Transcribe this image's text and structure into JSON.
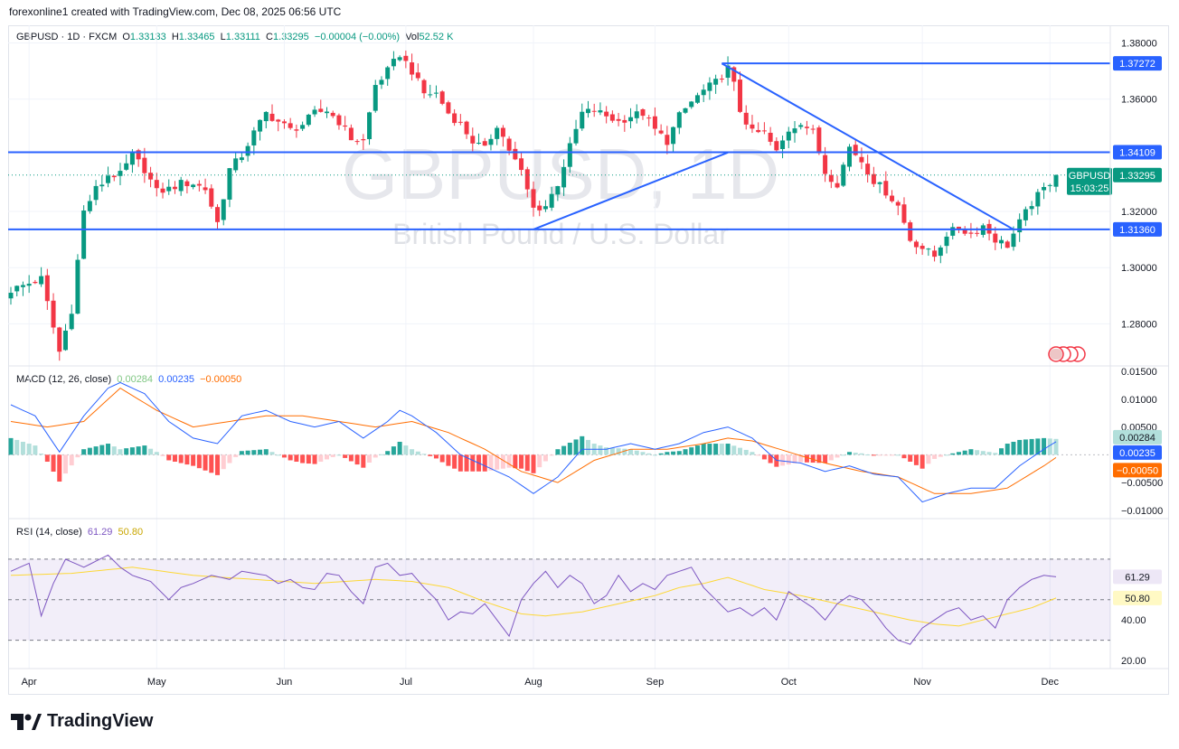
{
  "caption": "forexonline1 created with TradingView.com, Dec 08, 2025 06:56 UTC",
  "header": {
    "symbol": "GBPUSD · 1D · FXCM",
    "o_label": "O",
    "o": "1.33133",
    "h_label": "H",
    "h": "1.33465",
    "l_label": "L",
    "l": "1.33111",
    "c_label": "C",
    "c": "1.33295",
    "chg": "−0.00004 (−0.00%)",
    "vol_label": "Vol",
    "vol": "52.52 K"
  },
  "watermark": {
    "symbol": "GBPUSD, 1D",
    "description": "British Pound / U.S. Dollar"
  },
  "colors": {
    "up": "#089981",
    "down": "#f23645",
    "line": "#2962ff",
    "rsi": "#7e57c2",
    "rsi_ma": "#fdd835",
    "macd": "#2962ff",
    "signal": "#ff6d00"
  },
  "chart_data": [
    {
      "type": "candlestick",
      "title": "GBPUSD · 1D · FXCM",
      "ylim": [
        1.265,
        1.385
      ],
      "y_ticks": [
        "1.38000",
        "1.36000",
        "1.32000",
        "1.30000",
        "1.28000"
      ],
      "y_tick_values": [
        1.38,
        1.36,
        1.32,
        1.3,
        1.28
      ],
      "x_ticks": [
        "Apr",
        "May",
        "Jun",
        "Jul",
        "Aug",
        "Sep",
        "Oct",
        "Nov",
        "Dec"
      ],
      "x_tick_days": [
        3,
        24,
        45,
        65,
        86,
        106,
        128,
        150,
        171
      ],
      "close_series_days": [
        0,
        5,
        8,
        10,
        12,
        14,
        15,
        16,
        18,
        20,
        22,
        24,
        26,
        28,
        30,
        32,
        34,
        36,
        38,
        40,
        42,
        44,
        46,
        48,
        50,
        52,
        54,
        56,
        58,
        60,
        62,
        63,
        64,
        66,
        68,
        70,
        72,
        74,
        76,
        78,
        80,
        82,
        84,
        86,
        88,
        90,
        92,
        94,
        96,
        98,
        100,
        102,
        104,
        106,
        108,
        110,
        112,
        114,
        116,
        118,
        119,
        120,
        122,
        124,
        126,
        128,
        130,
        132,
        134,
        136,
        138,
        140,
        142,
        144,
        146,
        148,
        150,
        152,
        154,
        156,
        158,
        160,
        162,
        164,
        166,
        168,
        170,
        172
      ],
      "close_series": [
        1.292,
        1.296,
        1.27,
        1.285,
        1.32,
        1.328,
        1.33,
        1.333,
        1.333,
        1.34,
        1.335,
        1.327,
        1.328,
        1.33,
        1.33,
        1.328,
        1.316,
        1.335,
        1.34,
        1.348,
        1.355,
        1.352,
        1.349,
        1.351,
        1.355,
        1.356,
        1.352,
        1.346,
        1.345,
        1.365,
        1.37,
        1.373,
        1.376,
        1.37,
        1.362,
        1.362,
        1.355,
        1.351,
        1.345,
        1.342,
        1.351,
        1.342,
        1.334,
        1.321,
        1.322,
        1.33,
        1.343,
        1.355,
        1.356,
        1.354,
        1.352,
        1.354,
        1.355,
        1.349,
        1.345,
        1.354,
        1.359,
        1.363,
        1.366,
        1.371,
        1.365,
        1.356,
        1.348,
        1.348,
        1.341,
        1.349,
        1.352,
        1.348,
        1.334,
        1.33,
        1.343,
        1.338,
        1.331,
        1.327,
        1.322,
        1.31,
        1.307,
        1.304,
        1.312,
        1.314,
        1.312,
        1.315,
        1.31,
        1.308,
        1.316,
        1.323,
        1.328,
        1.333
      ],
      "horizontal_levels": [
        "1.37272",
        "1.34109",
        "1.31360"
      ],
      "horizontal_level_values": [
        1.37272,
        1.34109,
        1.3136
      ],
      "trendlines": [
        {
          "from": [
            86,
            1.3136
          ],
          "to": [
            118,
            1.341
          ]
        },
        {
          "from": [
            117,
            1.3727
          ],
          "to": [
            165,
            1.3136
          ]
        }
      ],
      "last_price": "1.33295",
      "last_price_value": 1.33295,
      "symbol_tag": "GBPUSD",
      "countdown": "15:03:25"
    },
    {
      "type": "line",
      "title": "MACD (12, 26, close)",
      "values_shown": [
        "0.00284",
        "0.00235",
        "−0.00050"
      ],
      "ylim": [
        -0.0115,
        0.016
      ],
      "y_ticks": [
        "0.01500",
        "0.01000",
        "0.00500",
        "−0.00500",
        "−0.01000"
      ],
      "y_tick_values": [
        0.015,
        0.01,
        0.005,
        -0.005,
        -0.01
      ],
      "series": [
        {
          "name": "MACD",
          "days": [
            0,
            4,
            8,
            12,
            16,
            18,
            22,
            26,
            30,
            34,
            38,
            42,
            46,
            50,
            54,
            58,
            62,
            64,
            66,
            70,
            74,
            78,
            82,
            86,
            90,
            94,
            98,
            102,
            106,
            110,
            114,
            118,
            122,
            126,
            130,
            134,
            138,
            142,
            146,
            150,
            154,
            158,
            162,
            166,
            170,
            172
          ],
          "values": [
            0.009,
            0.007,
            0.0005,
            0.007,
            0.012,
            0.013,
            0.011,
            0.006,
            0.003,
            0.002,
            0.007,
            0.008,
            0.006,
            0.005,
            0.006,
            0.003,
            0.006,
            0.008,
            0.007,
            0.004,
            0.0,
            -0.002,
            -0.004,
            -0.007,
            -0.004,
            0.001,
            0.001,
            0.002,
            0.001,
            0.002,
            0.004,
            0.005,
            0.003,
            -0.001,
            -0.0015,
            -0.003,
            -0.002,
            -0.0035,
            -0.004,
            -0.0085,
            -0.007,
            -0.006,
            -0.006,
            -0.002,
            0.001,
            0.00235
          ]
        },
        {
          "name": "Signal",
          "days": [
            0,
            6,
            12,
            18,
            24,
            30,
            36,
            42,
            48,
            54,
            60,
            66,
            72,
            78,
            84,
            90,
            96,
            102,
            108,
            114,
            118,
            122,
            128,
            134,
            140,
            146,
            152,
            158,
            164,
            170,
            172
          ],
          "values": [
            0.006,
            0.005,
            0.006,
            0.012,
            0.008,
            0.005,
            0.006,
            0.007,
            0.007,
            0.006,
            0.005,
            0.006,
            0.004,
            0.001,
            -0.003,
            -0.005,
            -0.001,
            0.001,
            0.001,
            0.002,
            0.003,
            0.0025,
            0.0005,
            -0.0015,
            -0.003,
            -0.004,
            -0.007,
            -0.007,
            -0.006,
            -0.002,
            -0.0005
          ]
        }
      ]
    },
    {
      "type": "line",
      "title": "RSI (14, close)",
      "values_shown": [
        "61.29",
        "50.80"
      ],
      "ylim": [
        16,
        90
      ],
      "y_ticks": [
        "40.00",
        "20.00"
      ],
      "y_tick_values": [
        40,
        20
      ],
      "band": [
        30,
        70
      ],
      "series": [
        {
          "name": "RSI",
          "days": [
            0,
            3,
            5,
            7,
            9,
            12,
            16,
            18,
            20,
            23,
            26,
            28,
            30,
            33,
            36,
            38,
            40,
            42,
            44,
            46,
            48,
            50,
            52,
            54,
            56,
            58,
            60,
            62,
            64,
            66,
            68,
            70,
            72,
            74,
            76,
            78,
            80,
            82,
            84,
            86,
            88,
            90,
            92,
            94,
            96,
            98,
            100,
            102,
            104,
            106,
            108,
            110,
            112,
            114,
            116,
            118,
            120,
            122,
            124,
            126,
            128,
            130,
            132,
            134,
            136,
            138,
            140,
            142,
            144,
            146,
            148,
            150,
            152,
            154,
            156,
            158,
            160,
            162,
            164,
            166,
            168,
            170,
            172
          ],
          "values": [
            64,
            68,
            42,
            58,
            70,
            66,
            72,
            66,
            62,
            59,
            50,
            56,
            58,
            62,
            60,
            64,
            63,
            62,
            58,
            60,
            56,
            55,
            63,
            62,
            54,
            48,
            66,
            68,
            62,
            63,
            56,
            50,
            40,
            44,
            43,
            48,
            40,
            32,
            50,
            58,
            64,
            56,
            62,
            58,
            48,
            52,
            62,
            54,
            58,
            55,
            62,
            64,
            66,
            56,
            50,
            44,
            46,
            42,
            46,
            40,
            54,
            50,
            46,
            40,
            48,
            52,
            50,
            44,
            36,
            30,
            28,
            36,
            40,
            44,
            46,
            40,
            42,
            36,
            50,
            56,
            60,
            62,
            61.29
          ]
        },
        {
          "name": "RSI-MA",
          "days": [
            0,
            10,
            20,
            30,
            40,
            50,
            60,
            66,
            72,
            78,
            84,
            88,
            94,
            100,
            106,
            110,
            114,
            118,
            124,
            130,
            136,
            142,
            148,
            152,
            156,
            160,
            164,
            168,
            172
          ],
          "values": [
            62,
            63,
            66,
            62,
            60,
            58,
            60,
            59,
            56,
            49,
            43,
            42,
            44,
            48,
            52,
            56,
            58,
            61,
            55,
            52,
            48,
            44,
            40,
            38,
            37,
            40,
            43,
            46,
            50.8
          ]
        }
      ]
    }
  ]
}
